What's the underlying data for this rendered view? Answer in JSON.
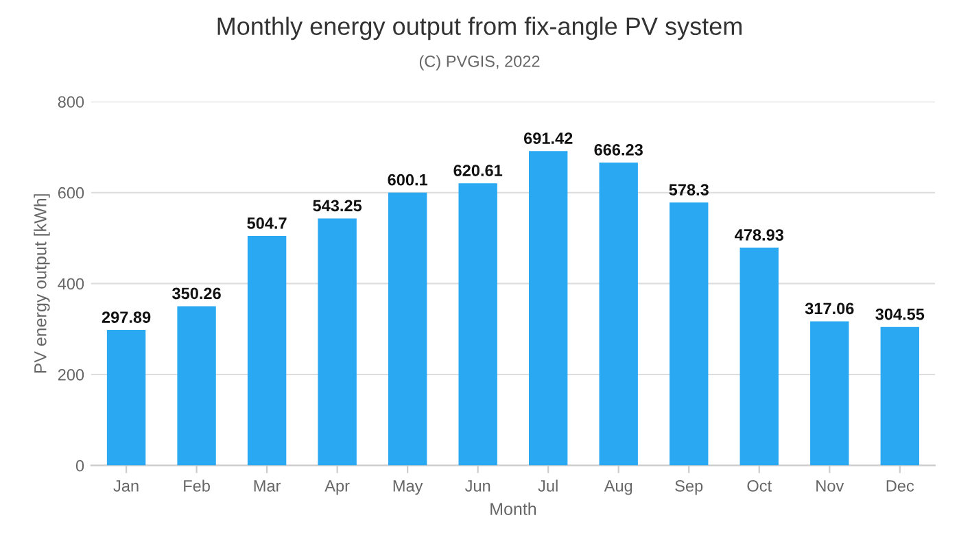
{
  "chart_data": {
    "type": "bar",
    "title": "Monthly energy output from fix-angle PV system",
    "subtitle": "(C) PVGIS, 2022",
    "xlabel": "Month",
    "ylabel": "PV energy output [kWh]",
    "categories": [
      "Jan",
      "Feb",
      "Mar",
      "Apr",
      "May",
      "Jun",
      "Jul",
      "Aug",
      "Sep",
      "Oct",
      "Nov",
      "Dec"
    ],
    "values": [
      297.89,
      350.26,
      504.7,
      543.25,
      600.1,
      620.61,
      691.42,
      666.23,
      578.3,
      478.93,
      317.06,
      304.55
    ],
    "color": "#2aa8f2",
    "ylim": [
      0,
      800
    ],
    "yticks": [
      0,
      200,
      400,
      600,
      800
    ],
    "grid": "y",
    "data_labels": true,
    "legend": false
  }
}
